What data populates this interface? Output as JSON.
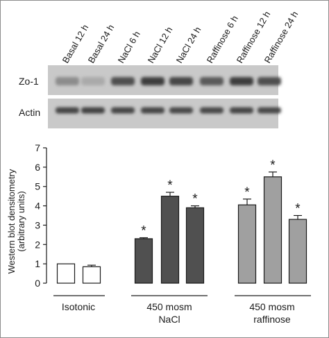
{
  "blot": {
    "lane_labels": [
      "Basal 12 h",
      "Basal 24 h",
      "NaCl 6 h",
      "NaCl 12 h",
      "NaCl 24 h",
      "Raffinose 6 h",
      "Raffinose 12 h",
      "Raffinose 24 h"
    ],
    "rows": [
      {
        "label": "Zo-1",
        "intensity": [
          0.45,
          0.3,
          0.75,
          0.85,
          0.8,
          0.7,
          0.85,
          0.75
        ]
      },
      {
        "label": "Actin",
        "intensity": [
          0.8,
          0.82,
          0.8,
          0.8,
          0.78,
          0.78,
          0.8,
          0.78
        ]
      }
    ]
  },
  "chart_data": {
    "type": "bar",
    "ylabel_line1": "Western blot densitometry",
    "ylabel_line2": "(arbitrary units)",
    "ylim": [
      0,
      7
    ],
    "yticks": [
      "0",
      "1",
      "2",
      "3",
      "4",
      "5",
      "6",
      "7"
    ],
    "bar_colors": {
      "Isotonic": "#ffffff",
      "NaCl": "#505050",
      "raffinose": "#a0a0a0"
    },
    "groups": [
      {
        "name": "Isotonic",
        "label_lines": [
          "Isotonic"
        ],
        "bars": [
          {
            "condition": "Basal 12 h",
            "value": 1.0,
            "error": 0.0,
            "significant": false
          },
          {
            "condition": "Basal 24 h",
            "value": 0.85,
            "error": 0.08,
            "significant": false
          }
        ]
      },
      {
        "name": "NaCl",
        "label_lines": [
          "450 mosm",
          "NaCl"
        ],
        "bars": [
          {
            "condition": "NaCl 6 h",
            "value": 2.3,
            "error": 0.05,
            "significant": true
          },
          {
            "condition": "NaCl 12 h",
            "value": 4.5,
            "error": 0.2,
            "significant": true
          },
          {
            "condition": "NaCl 24 h",
            "value": 3.9,
            "error": 0.1,
            "significant": true
          }
        ]
      },
      {
        "name": "raffinose",
        "label_lines": [
          "450 mosm",
          "raffinose"
        ],
        "bars": [
          {
            "condition": "Raffinose 6 h",
            "value": 4.05,
            "error": 0.3,
            "significant": true
          },
          {
            "condition": "Raffinose 12 h",
            "value": 5.5,
            "error": 0.25,
            "significant": true
          },
          {
            "condition": "Raffinose 24 h",
            "value": 3.3,
            "error": 0.2,
            "significant": true
          }
        ]
      }
    ],
    "significance_marker": "*"
  }
}
